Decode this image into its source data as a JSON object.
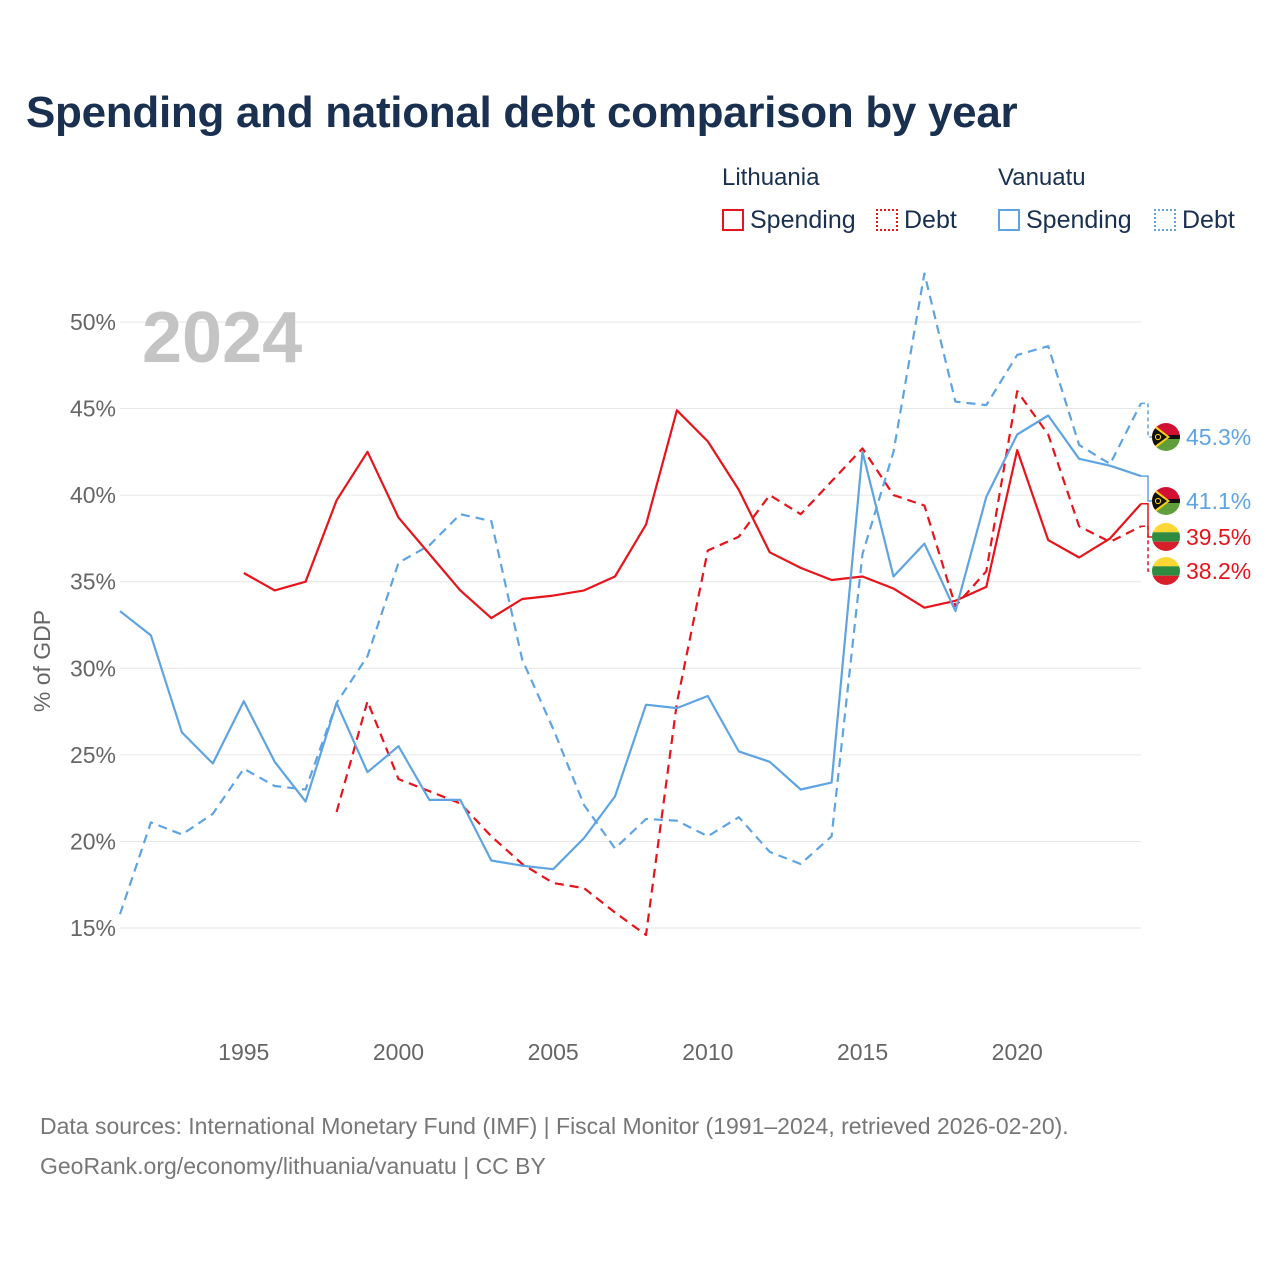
{
  "title": "Spending and national debt comparison by year",
  "legend": {
    "groups": [
      {
        "country": "Lithuania",
        "color": "#e8141b",
        "items": [
          {
            "label": "Spending",
            "style": "solid"
          },
          {
            "label": "Debt",
            "style": "dotted"
          }
        ]
      },
      {
        "country": "Vanuatu",
        "color": "#5fa4e2",
        "items": [
          {
            "label": "Spending",
            "style": "solid"
          },
          {
            "label": "Debt",
            "style": "dotted"
          }
        ]
      }
    ]
  },
  "sources": {
    "line1": "Data sources: International Monetary Fund (IMF) | Fiscal Monitor (1991–2024, retrieved 2026-02-20).",
    "line2": "GeoRank.org/economy/lithuania/vanuatu | CC BY"
  },
  "chart_data": {
    "type": "line",
    "year_watermark": "2024",
    "ylabel": "% of GDP",
    "xlim": [
      1991,
      2024
    ],
    "ylim": [
      12,
      53
    ],
    "yticks": [
      15,
      20,
      25,
      30,
      35,
      40,
      45,
      50
    ],
    "ytick_labels": [
      "15%",
      "20%",
      "25%",
      "30%",
      "35%",
      "40%",
      "45%",
      "50%"
    ],
    "xticks": [
      1995,
      2000,
      2005,
      2010,
      2015,
      2020
    ],
    "xtick_labels": [
      "1995",
      "2000",
      "2005",
      "2010",
      "2015",
      "2020"
    ],
    "grid": true,
    "series": [
      {
        "name": "Lithuania Spending",
        "country": "Lithuania",
        "color": "#e8141b",
        "dash": "solid",
        "end_label": "39.5%",
        "points": [
          [
            1995,
            35.5
          ],
          [
            1996,
            34.5
          ],
          [
            1997,
            35.0
          ],
          [
            1998,
            39.7
          ],
          [
            1999,
            42.5
          ],
          [
            2000,
            38.7
          ],
          [
            2001,
            36.6
          ],
          [
            2002,
            34.5
          ],
          [
            2003,
            32.9
          ],
          [
            2004,
            34.0
          ],
          [
            2005,
            34.2
          ],
          [
            2006,
            34.5
          ],
          [
            2007,
            35.3
          ],
          [
            2008,
            38.3
          ],
          [
            2009,
            44.9
          ],
          [
            2010,
            43.1
          ],
          [
            2011,
            40.3
          ],
          [
            2012,
            36.7
          ],
          [
            2013,
            35.8
          ],
          [
            2014,
            35.1
          ],
          [
            2015,
            35.3
          ],
          [
            2016,
            34.6
          ],
          [
            2017,
            33.5
          ],
          [
            2018,
            33.9
          ],
          [
            2019,
            34.7
          ],
          [
            2020,
            42.6
          ],
          [
            2021,
            37.4
          ],
          [
            2022,
            36.4
          ],
          [
            2023,
            37.5
          ],
          [
            2024,
            39.5
          ]
        ]
      },
      {
        "name": "Lithuania Debt",
        "country": "Lithuania",
        "color": "#e8141b",
        "dash": "dashed",
        "end_label": "38.2%",
        "points": [
          [
            1998,
            21.7
          ],
          [
            1999,
            28.1
          ],
          [
            2000,
            23.6
          ],
          [
            2001,
            22.9
          ],
          [
            2002,
            22.2
          ],
          [
            2003,
            20.3
          ],
          [
            2004,
            18.7
          ],
          [
            2005,
            17.6
          ],
          [
            2006,
            17.3
          ],
          [
            2007,
            15.9
          ],
          [
            2008,
            14.6
          ],
          [
            2009,
            28.0
          ],
          [
            2010,
            36.8
          ],
          [
            2011,
            37.6
          ],
          [
            2012,
            40.0
          ],
          [
            2013,
            38.9
          ],
          [
            2014,
            40.8
          ],
          [
            2015,
            42.7
          ],
          [
            2016,
            40.0
          ],
          [
            2017,
            39.4
          ],
          [
            2018,
            33.6
          ],
          [
            2019,
            35.6
          ],
          [
            2020,
            46.0
          ],
          [
            2021,
            43.5
          ],
          [
            2022,
            38.2
          ],
          [
            2023,
            37.3
          ],
          [
            2024,
            38.2
          ]
        ]
      },
      {
        "name": "Vanuatu Spending",
        "country": "Vanuatu",
        "color": "#5fa4e2",
        "dash": "solid",
        "end_label": "41.1%",
        "points": [
          [
            1991,
            33.3
          ],
          [
            1992,
            31.9
          ],
          [
            1993,
            26.3
          ],
          [
            1994,
            24.5
          ],
          [
            1995,
            28.1
          ],
          [
            1996,
            24.6
          ],
          [
            1997,
            22.3
          ],
          [
            1998,
            28.0
          ],
          [
            1999,
            24.0
          ],
          [
            2000,
            25.5
          ],
          [
            2001,
            22.4
          ],
          [
            2002,
            22.4
          ],
          [
            2003,
            18.9
          ],
          [
            2004,
            18.6
          ],
          [
            2005,
            18.4
          ],
          [
            2006,
            20.2
          ],
          [
            2007,
            22.6
          ],
          [
            2008,
            27.9
          ],
          [
            2009,
            27.7
          ],
          [
            2010,
            28.4
          ],
          [
            2011,
            25.2
          ],
          [
            2012,
            24.6
          ],
          [
            2013,
            23.0
          ],
          [
            2014,
            23.4
          ],
          [
            2015,
            42.5
          ],
          [
            2016,
            35.3
          ],
          [
            2017,
            37.2
          ],
          [
            2018,
            33.3
          ],
          [
            2019,
            39.9
          ],
          [
            2020,
            43.5
          ],
          [
            2021,
            44.6
          ],
          [
            2022,
            42.1
          ],
          [
            2023,
            41.7
          ],
          [
            2024,
            41.1
          ]
        ]
      },
      {
        "name": "Vanuatu Debt",
        "country": "Vanuatu",
        "color": "#5fa4e2",
        "dash": "dashed",
        "end_label": "45.3%",
        "points": [
          [
            1991,
            15.8
          ],
          [
            1992,
            21.1
          ],
          [
            1993,
            20.4
          ],
          [
            1994,
            21.6
          ],
          [
            1995,
            24.2
          ],
          [
            1996,
            23.2
          ],
          [
            1997,
            23.0
          ],
          [
            1998,
            28.0
          ],
          [
            1999,
            30.7
          ],
          [
            2000,
            36.1
          ],
          [
            2001,
            37.1
          ],
          [
            2002,
            38.9
          ],
          [
            2003,
            38.5
          ],
          [
            2004,
            30.5
          ],
          [
            2005,
            26.5
          ],
          [
            2006,
            22.1
          ],
          [
            2007,
            19.6
          ],
          [
            2008,
            21.3
          ],
          [
            2009,
            21.2
          ],
          [
            2010,
            20.3
          ],
          [
            2011,
            21.4
          ],
          [
            2012,
            19.4
          ],
          [
            2013,
            18.7
          ],
          [
            2014,
            20.3
          ],
          [
            2015,
            36.6
          ],
          [
            2016,
            42.5
          ],
          [
            2017,
            52.8
          ],
          [
            2018,
            45.4
          ],
          [
            2019,
            45.2
          ],
          [
            2020,
            48.1
          ],
          [
            2021,
            48.6
          ],
          [
            2022,
            42.9
          ],
          [
            2023,
            41.8
          ],
          [
            2024,
            45.3
          ]
        ]
      }
    ]
  }
}
